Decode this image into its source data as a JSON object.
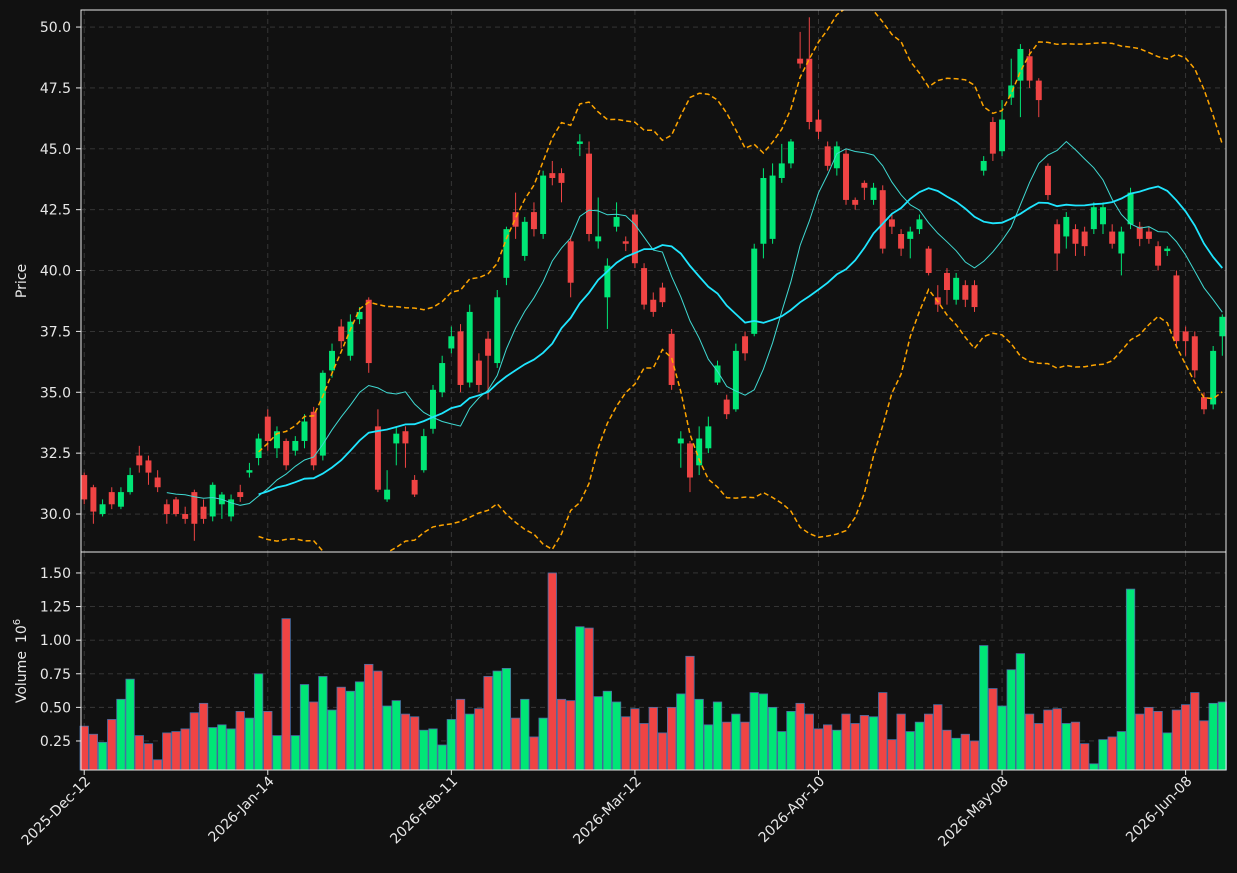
{
  "chart_data": {
    "type": "candlestick",
    "categories": [
      "2025-Dec-12",
      null,
      null,
      null,
      null,
      null,
      null,
      null,
      null,
      null,
      null,
      null,
      null,
      null,
      null,
      null,
      null,
      null,
      null,
      null,
      "2026-Jan-14",
      null,
      null,
      null,
      null,
      null,
      null,
      null,
      null,
      null,
      null,
      null,
      null,
      null,
      null,
      null,
      null,
      null,
      null,
      null,
      "2026-Feb-11",
      null,
      null,
      null,
      null,
      null,
      null,
      null,
      null,
      null,
      null,
      null,
      null,
      null,
      null,
      null,
      null,
      null,
      null,
      null,
      "2026-Mar-12",
      null,
      null,
      null,
      null,
      null,
      null,
      null,
      null,
      null,
      null,
      null,
      null,
      null,
      null,
      null,
      null,
      null,
      null,
      null,
      "2026-Apr-10",
      null,
      null,
      null,
      null,
      null,
      null,
      null,
      null,
      null,
      null,
      null,
      null,
      null,
      null,
      null,
      null,
      null,
      null,
      null,
      "2026-May-08",
      null,
      null,
      null,
      null,
      null,
      null,
      null,
      null,
      null,
      null,
      null,
      null,
      null,
      null,
      null,
      null,
      null,
      null,
      null,
      "2026-Jun-08",
      null,
      null,
      null,
      null
    ],
    "open": [
      31.6,
      31.1,
      30.0,
      30.9,
      30.3,
      30.9,
      32.4,
      32.2,
      31.5,
      30.4,
      30.6,
      30.0,
      30.9,
      30.3,
      29.9,
      30.4,
      29.9,
      30.9,
      31.7,
      32.3,
      34.0,
      32.7,
      33.0,
      32.6,
      33.0,
      34.2,
      32.4,
      35.9,
      37.7,
      36.5,
      38.0,
      38.8,
      33.6,
      30.6,
      32.9,
      33.4,
      31.4,
      31.8,
      33.5,
      35.0,
      36.8,
      37.5,
      35.4,
      36.3,
      37.2,
      36.2,
      39.7,
      42.4,
      40.6,
      42.4,
      41.5,
      44.0,
      44.0,
      41.2,
      45.2,
      44.8,
      41.2,
      38.9,
      41.8,
      41.2,
      42.3,
      40.1,
      38.8,
      39.3,
      37.4,
      32.9,
      32.9,
      32.0,
      32.7,
      35.4,
      34.7,
      34.3,
      37.3,
      37.4,
      41.1,
      41.3,
      43.8,
      44.4,
      48.7,
      48.7,
      46.2,
      45.1,
      44.2,
      44.8,
      42.9,
      43.6,
      42.9,
      43.3,
      42.1,
      41.5,
      41.3,
      41.7,
      40.9,
      38.9,
      39.9,
      38.8,
      39.4,
      39.4,
      44.1,
      46.1,
      44.9,
      47.1,
      47.8,
      48.8,
      47.8,
      44.3,
      41.9,
      41.4,
      41.7,
      41.6,
      41.7,
      41.9,
      41.6,
      40.7,
      41.9,
      41.8,
      41.6,
      41.0,
      40.8,
      39.8,
      37.5,
      37.3,
      34.8,
      34.5,
      37.3
    ],
    "high": [
      31.7,
      31.2,
      30.6,
      31.1,
      31.1,
      31.9,
      32.8,
      32.4,
      31.8,
      30.6,
      30.7,
      30.3,
      31.0,
      30.6,
      31.3,
      30.9,
      30.8,
      31.2,
      32.1,
      33.3,
      34.3,
      33.6,
      33.1,
      33.2,
      34.1,
      34.4,
      35.9,
      37.0,
      38.0,
      38.2,
      38.5,
      38.9,
      34.3,
      31.8,
      33.6,
      33.6,
      31.6,
      33.5,
      35.3,
      36.5,
      37.7,
      37.8,
      38.6,
      36.6,
      37.5,
      39.2,
      41.8,
      43.2,
      42.2,
      42.8,
      44.1,
      44.5,
      44.2,
      41.4,
      45.6,
      45.3,
      43.0,
      40.5,
      42.8,
      41.4,
      42.5,
      40.3,
      39.1,
      39.5,
      37.6,
      33.4,
      33.0,
      33.6,
      34.0,
      36.3,
      34.9,
      37.0,
      37.5,
      41.1,
      44.2,
      44.4,
      45.2,
      45.4,
      49.8,
      50.4,
      46.6,
      45.3,
      45.3,
      45.0,
      43.0,
      43.7,
      43.6,
      43.5,
      42.3,
      41.7,
      41.8,
      42.3,
      41.0,
      39.4,
      40.1,
      39.9,
      39.6,
      39.6,
      44.7,
      46.3,
      47.0,
      48.7,
      49.3,
      49.1,
      47.9,
      44.4,
      42.1,
      42.4,
      41.9,
      41.8,
      42.8,
      42.8,
      41.9,
      41.8,
      43.4,
      42.0,
      41.8,
      41.2,
      41.0,
      40.0,
      37.7,
      37.5,
      35.0,
      36.9,
      38.2
    ],
    "low": [
      30.4,
      29.6,
      29.9,
      30.2,
      30.2,
      30.8,
      31.7,
      31.2,
      30.9,
      29.6,
      29.9,
      29.6,
      28.9,
      29.6,
      29.7,
      29.8,
      29.7,
      30.5,
      31.5,
      32.0,
      32.6,
      32.3,
      31.8,
      32.4,
      32.7,
      31.8,
      32.2,
      35.6,
      36.8,
      36.3,
      37.8,
      35.8,
      30.9,
      30.5,
      32.0,
      31.9,
      30.7,
      31.7,
      33.3,
      34.8,
      36.6,
      35.0,
      35.2,
      35.0,
      34.7,
      36.0,
      39.4,
      41.3,
      40.4,
      41.4,
      41.3,
      43.5,
      42.8,
      38.9,
      44.7,
      41.2,
      40.9,
      37.6,
      41.6,
      40.8,
      40.1,
      38.4,
      38.1,
      38.5,
      35.1,
      31.9,
      30.9,
      31.6,
      32.5,
      35.3,
      33.9,
      34.2,
      36.3,
      37.3,
      40.5,
      41.1,
      43.6,
      44.2,
      48.3,
      45.8,
      45.4,
      44.1,
      43.9,
      42.7,
      42.5,
      42.9,
      42.7,
      40.7,
      41.5,
      40.6,
      40.5,
      41.5,
      39.8,
      38.3,
      38.6,
      38.6,
      38.5,
      38.3,
      43.9,
      44.5,
      44.7,
      46.8,
      46.3,
      47.5,
      46.3,
      42.9,
      40.0,
      40.9,
      40.6,
      40.6,
      41.5,
      41.5,
      40.9,
      39.8,
      41.7,
      41.0,
      41.1,
      40.0,
      40.6,
      36.9,
      36.5,
      35.6,
      34.1,
      34.3,
      36.5
    ],
    "close": [
      30.6,
      30.1,
      30.4,
      30.4,
      30.9,
      31.6,
      32.0,
      31.7,
      31.1,
      30.0,
      30.0,
      29.8,
      29.6,
      29.8,
      31.2,
      30.8,
      30.6,
      30.7,
      31.8,
      33.1,
      33.0,
      33.4,
      32.0,
      33.0,
      33.8,
      32.0,
      35.8,
      36.7,
      37.1,
      37.9,
      38.3,
      36.2,
      31.0,
      31.0,
      33.3,
      32.9,
      30.8,
      33.2,
      35.1,
      36.2,
      37.3,
      35.3,
      38.3,
      35.3,
      36.5,
      38.9,
      41.7,
      41.8,
      42.0,
      41.7,
      43.9,
      43.8,
      43.6,
      39.5,
      45.3,
      41.5,
      41.4,
      40.2,
      42.2,
      41.1,
      40.3,
      38.6,
      38.3,
      38.7,
      35.3,
      33.1,
      31.5,
      33.1,
      33.6,
      36.1,
      34.1,
      36.7,
      36.6,
      40.9,
      43.8,
      43.9,
      44.4,
      45.3,
      48.5,
      46.1,
      45.7,
      44.3,
      45.1,
      42.9,
      42.7,
      43.4,
      43.4,
      40.9,
      41.8,
      40.9,
      41.6,
      42.1,
      39.9,
      38.6,
      39.2,
      39.7,
      38.8,
      38.5,
      44.5,
      44.8,
      46.2,
      47.6,
      49.1,
      47.8,
      47.0,
      43.1,
      40.7,
      42.2,
      41.1,
      41.0,
      42.6,
      42.6,
      41.1,
      41.6,
      43.2,
      41.3,
      41.3,
      40.2,
      40.9,
      37.1,
      37.1,
      35.9,
      34.3,
      36.7,
      38.1
    ],
    "volume": [
      0.36,
      0.3,
      0.24,
      0.41,
      0.56,
      0.71,
      0.29,
      0.23,
      0.11,
      0.31,
      0.32,
      0.34,
      0.46,
      0.53,
      0.35,
      0.37,
      0.34,
      0.47,
      0.42,
      0.75,
      0.47,
      0.29,
      1.16,
      0.29,
      0.67,
      0.54,
      0.73,
      0.48,
      0.65,
      0.62,
      0.69,
      0.82,
      0.77,
      0.51,
      0.55,
      0.45,
      0.43,
      0.33,
      0.34,
      0.22,
      0.41,
      0.56,
      0.45,
      0.49,
      0.73,
      0.77,
      0.79,
      0.42,
      0.56,
      0.28,
      0.42,
      1.5,
      0.56,
      0.55,
      1.1,
      1.09,
      0.58,
      0.62,
      0.54,
      0.43,
      0.49,
      0.38,
      0.5,
      0.31,
      0.5,
      0.6,
      0.88,
      0.56,
      0.37,
      0.54,
      0.39,
      0.45,
      0.39,
      0.61,
      0.6,
      0.5,
      0.32,
      0.47,
      0.53,
      0.45,
      0.34,
      0.37,
      0.33,
      0.45,
      0.38,
      0.44,
      0.43,
      0.61,
      0.26,
      0.45,
      0.32,
      0.39,
      0.45,
      0.52,
      0.33,
      0.27,
      0.3,
      0.25,
      0.96,
      0.64,
      0.51,
      0.78,
      0.9,
      0.45,
      0.38,
      0.48,
      0.49,
      0.38,
      0.39,
      0.23,
      0.08,
      0.26,
      0.28,
      0.32,
      1.38,
      0.45,
      0.5,
      0.47,
      0.31,
      0.48,
      0.52,
      0.61,
      0.4,
      0.53,
      0.54
    ],
    "up_color": "#00e676",
    "down_color": "#ef4444",
    "mav": [
      10,
      20
    ],
    "mav_colors": [
      "#3fd9d2",
      "#1fe6ff"
    ],
    "bollinger": {
      "period": 20,
      "std": 2,
      "color": "#ffa500"
    },
    "ylabel": "Price",
    "ylim": [
      28.44,
      50.7
    ],
    "yticks": [
      {
        "value": 30,
        "label": "30.0"
      },
      32.5,
      {
        "value": 35,
        "label": "35.0"
      },
      37.5,
      {
        "value": 40,
        "label": "40.0"
      },
      42.5,
      {
        "value": 45,
        "label": "45.0"
      },
      47.5,
      {
        "value": 50,
        "label": "50.0"
      }
    ],
    "volume_label": "Volume",
    "volume_offset_base": "10",
    "volume_offset_exp": "6",
    "volume_ylim": [
      0.034,
      1.656
    ],
    "volume_yticks": [
      0.25,
      {
        "value": 0.5,
        "label": "0.50"
      },
      0.75,
      {
        "value": 1,
        "label": "1.00"
      },
      1.25,
      {
        "value": 1.5,
        "label": "1.50"
      }
    ],
    "grid": true
  }
}
